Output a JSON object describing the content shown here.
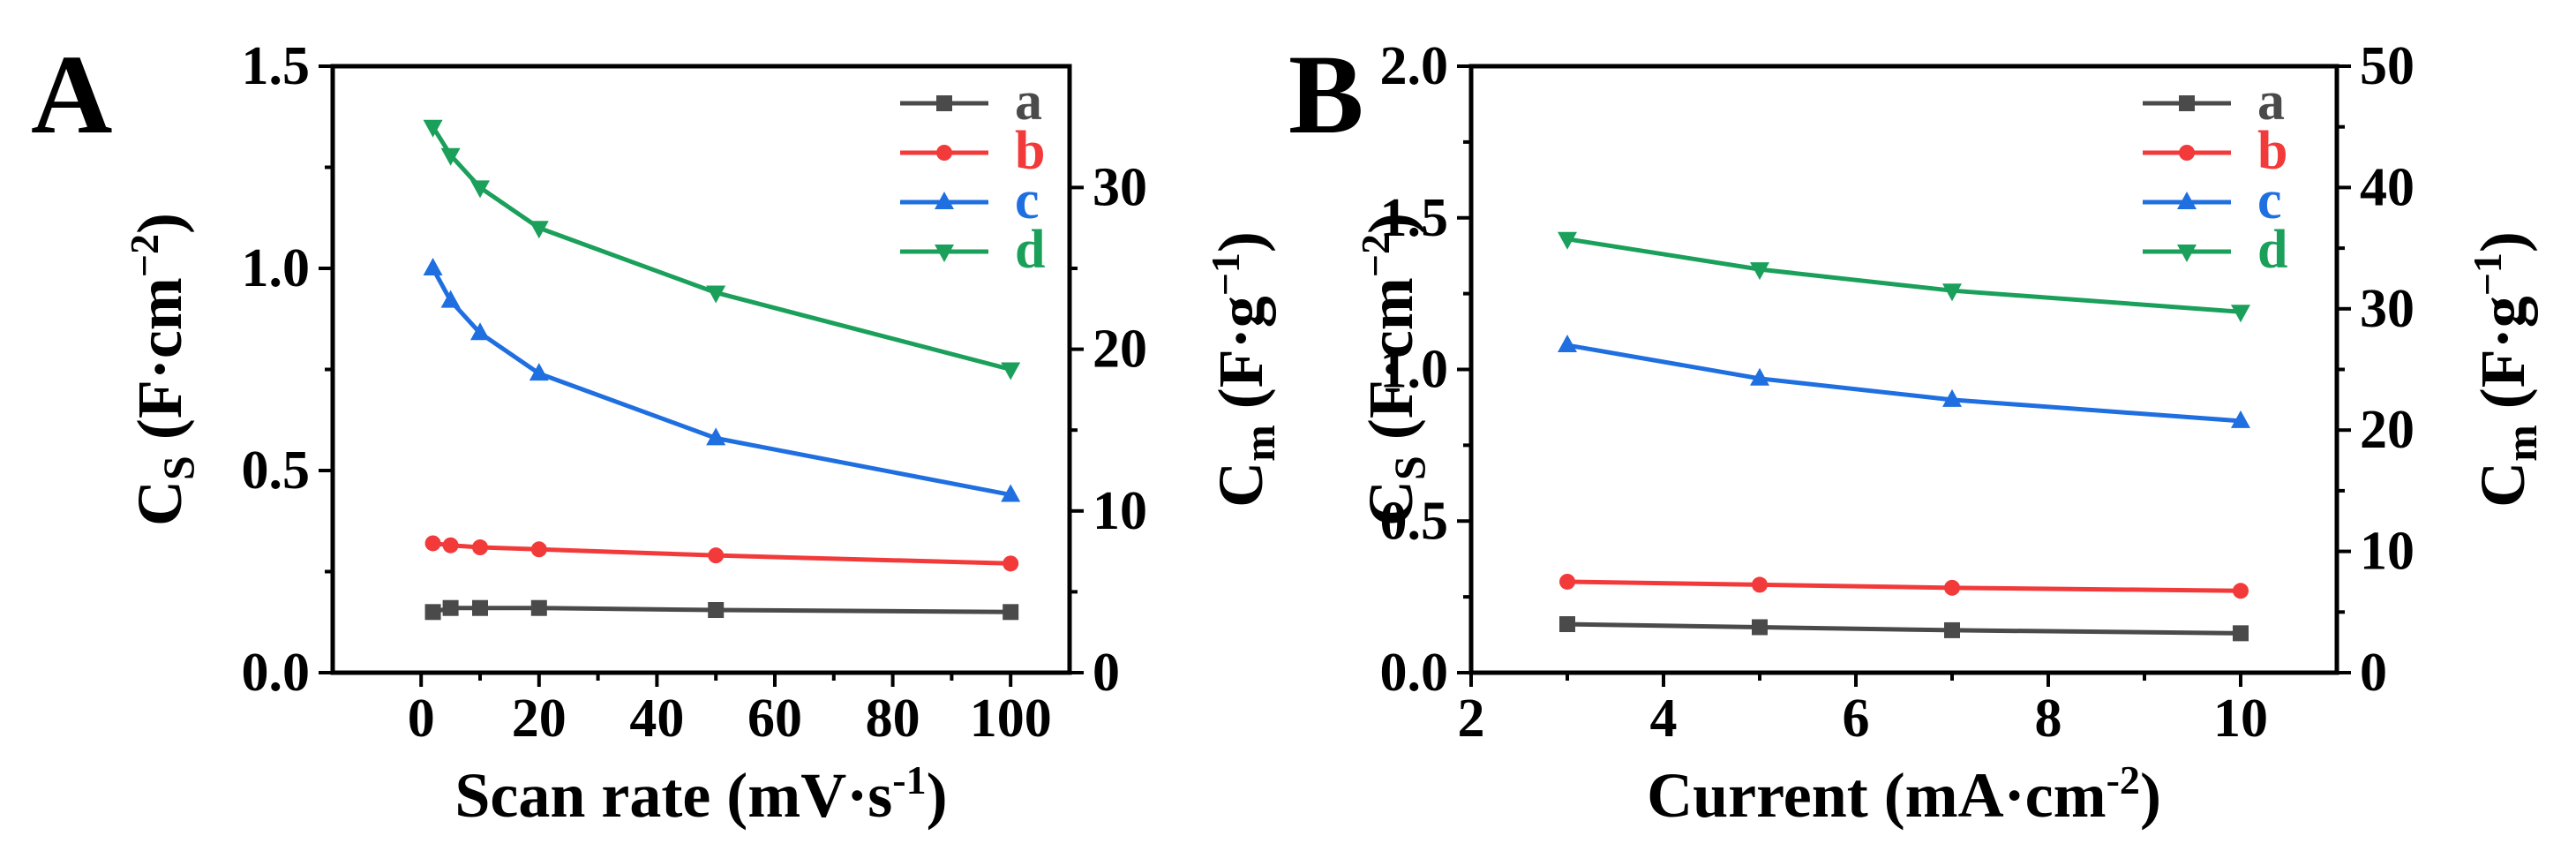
{
  "chart_data": [
    {
      "panel": "A",
      "type": "line",
      "xlabel": "Scan rate (mV·s-1)",
      "xlabel_parts": [
        "Scan rate (mV·s",
        "-1",
        ")"
      ],
      "ylabel_left_parts": [
        "C",
        "S",
        " (F·cm",
        "−2",
        ")"
      ],
      "ylabel_right_parts": [
        "C",
        "m",
        " (F·g",
        "−1",
        ")"
      ],
      "xlim": [
        -15,
        110
      ],
      "xticks": [
        0,
        20,
        40,
        60,
        80,
        100
      ],
      "ylim_left": [
        0,
        1.5
      ],
      "yticks_left": [
        "0.0",
        "0.5",
        "1.0",
        "1.5"
      ],
      "ylim_right": [
        0,
        37.5
      ],
      "yticks_right": [
        0,
        10,
        20,
        30
      ],
      "x": [
        2,
        5,
        10,
        20,
        50,
        100
      ],
      "series": [
        {
          "name": "a",
          "color": "#4a4a4a",
          "marker": "square",
          "values": [
            0.15,
            0.16,
            0.16,
            0.16,
            0.155,
            0.15
          ]
        },
        {
          "name": "b",
          "color": "#f23a3a",
          "marker": "circle",
          "values": [
            0.32,
            0.315,
            0.31,
            0.305,
            0.29,
            0.27
          ]
        },
        {
          "name": "c",
          "color": "#1f6fe0",
          "marker": "triangle-up",
          "values": [
            1.0,
            0.92,
            0.84,
            0.74,
            0.58,
            0.44
          ]
        },
        {
          "name": "d",
          "color": "#1aa05a",
          "marker": "triangle-down",
          "values": [
            1.35,
            1.28,
            1.2,
            1.1,
            0.94,
            0.75
          ]
        }
      ]
    },
    {
      "panel": "B",
      "type": "line",
      "xlabel": "Current (mA·cm-2)",
      "xlabel_parts": [
        "Current (mA·cm",
        "-2",
        ")"
      ],
      "ylabel_left_parts": [
        "C",
        "S",
        " (F·cm",
        "−2",
        ")"
      ],
      "ylabel_right_parts": [
        "C",
        "m",
        " (F·g",
        "−1",
        ")"
      ],
      "xlim": [
        2,
        11
      ],
      "xticks": [
        2,
        4,
        6,
        8,
        10
      ],
      "ylim_left": [
        0,
        2.0
      ],
      "yticks_left": [
        "0.0",
        "0.5",
        "1.0",
        "1.5",
        "2.0"
      ],
      "ylim_right": [
        0,
        50
      ],
      "yticks_right": [
        0,
        10,
        20,
        30,
        40,
        50
      ],
      "x": [
        3,
        5,
        7,
        10
      ],
      "series": [
        {
          "name": "a",
          "color": "#4a4a4a",
          "marker": "square",
          "values": [
            0.16,
            0.15,
            0.14,
            0.13
          ]
        },
        {
          "name": "b",
          "color": "#f23a3a",
          "marker": "circle",
          "values": [
            0.3,
            0.29,
            0.28,
            0.27
          ]
        },
        {
          "name": "c",
          "color": "#1f6fe0",
          "marker": "triangle-up",
          "values": [
            1.08,
            0.97,
            0.9,
            0.83
          ]
        },
        {
          "name": "d",
          "color": "#1aa05a",
          "marker": "triangle-down",
          "values": [
            1.43,
            1.33,
            1.26,
            1.19
          ]
        }
      ]
    }
  ]
}
